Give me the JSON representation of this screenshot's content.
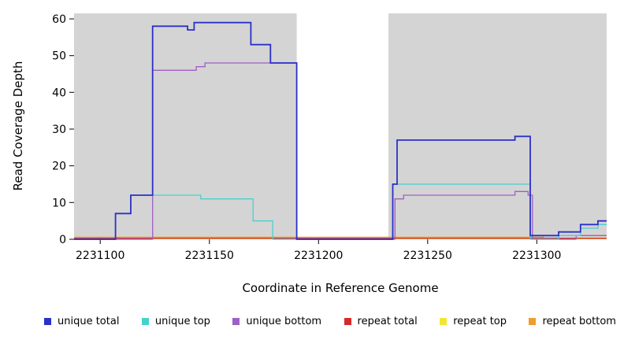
{
  "chart_data": {
    "type": "line",
    "step": true,
    "title": "",
    "xlabel": "Coordinate in Reference Genome",
    "ylabel": "Read Coverage Depth",
    "xlim": [
      2231088,
      2231332
    ],
    "ylim": [
      0,
      61.5
    ],
    "xticks": [
      2231100,
      2231150,
      2231200,
      2231250,
      2231300
    ],
    "yticks": [
      0,
      10,
      20,
      30,
      40,
      50,
      60
    ],
    "grid": false,
    "panel_background": "#d4d4d4",
    "gap_region": {
      "from": 2231190,
      "to": 2231232,
      "color": "#ffffff"
    },
    "series": [
      {
        "name": "repeat top",
        "color": "#f2e635",
        "points": [
          [
            2231088,
            0.1
          ]
        ]
      },
      {
        "name": "repeat total",
        "color": "#d42a2a",
        "points": [
          [
            2231088,
            0.25
          ]
        ]
      },
      {
        "name": "repeat bottom",
        "color": "#f09c2e",
        "points": [
          [
            2231088,
            0.55
          ],
          [
            2231303,
            1
          ]
        ]
      },
      {
        "name": "unique bottom",
        "color": "#9d5fc4",
        "points": [
          [
            2231088,
            0
          ],
          [
            2231124,
            46
          ],
          [
            2231144,
            47
          ],
          [
            2231148,
            48
          ],
          [
            2231190,
            0
          ],
          [
            2231235,
            11
          ],
          [
            2231239,
            12
          ],
          [
            2231290,
            13
          ],
          [
            2231296,
            12
          ],
          [
            2231298,
            0
          ],
          [
            2231318,
            1
          ]
        ]
      },
      {
        "name": "unique top",
        "color": "#48d1cc",
        "points": [
          [
            2231088,
            0
          ],
          [
            2231107,
            7
          ],
          [
            2231114,
            12
          ],
          [
            2231146,
            11
          ],
          [
            2231170,
            5
          ],
          [
            2231179,
            0
          ],
          [
            2231234,
            15
          ],
          [
            2231297,
            0
          ],
          [
            2231310,
            1
          ],
          [
            2231320,
            3
          ],
          [
            2231328,
            4
          ]
        ]
      },
      {
        "name": "unique total",
        "color": "#2b30c8",
        "points": [
          [
            2231088,
            0
          ],
          [
            2231107,
            7
          ],
          [
            2231114,
            12
          ],
          [
            2231124,
            58
          ],
          [
            2231140,
            57
          ],
          [
            2231143,
            59
          ],
          [
            2231169,
            53
          ],
          [
            2231178,
            48
          ],
          [
            2231190,
            0
          ],
          [
            2231234,
            15
          ],
          [
            2231236,
            27
          ],
          [
            2231290,
            28
          ],
          [
            2231297,
            1
          ],
          [
            2231310,
            2
          ],
          [
            2231320,
            4
          ],
          [
            2231328,
            5
          ]
        ]
      }
    ],
    "legend_position": "bottom",
    "legend": [
      {
        "label": "unique total",
        "color": "#2b30c8"
      },
      {
        "label": "unique top",
        "color": "#48d1cc"
      },
      {
        "label": "unique bottom",
        "color": "#9d5fc4"
      },
      {
        "label": "repeat total",
        "color": "#d42a2a"
      },
      {
        "label": "repeat top",
        "color": "#f2e635"
      },
      {
        "label": "repeat bottom",
        "color": "#f09c2e"
      }
    ]
  }
}
